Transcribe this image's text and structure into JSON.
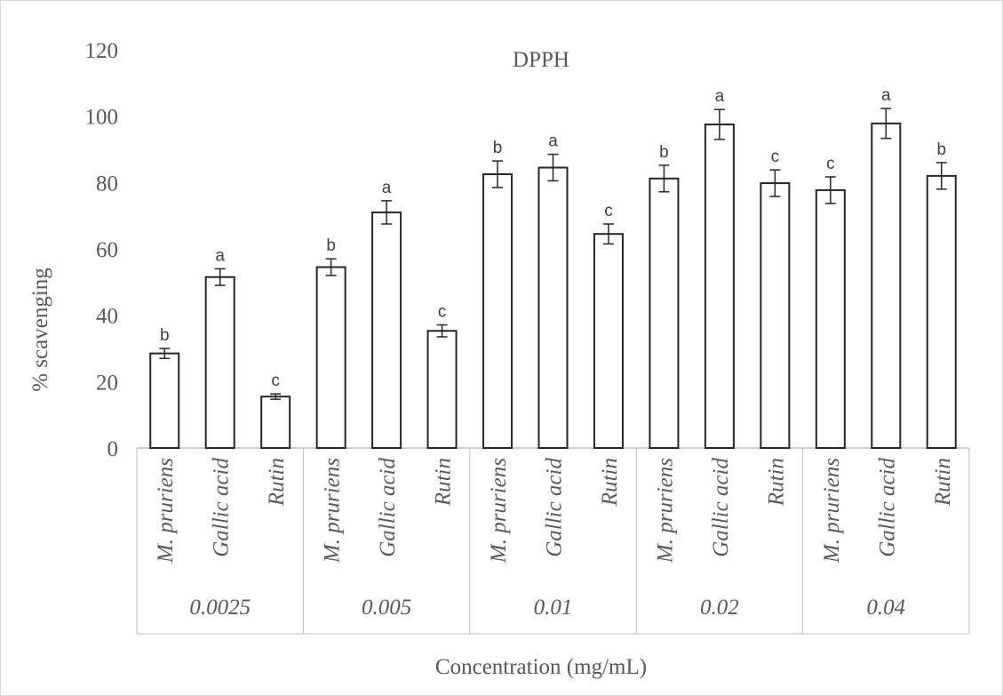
{
  "chart_data": {
    "type": "bar",
    "title": "DPPH",
    "xlabel": "Concentration (mg/mL)",
    "ylabel": "% scavenging",
    "ylim": [
      0,
      120
    ],
    "yticks": [
      0,
      20,
      40,
      60,
      80,
      100,
      120
    ],
    "grid": false,
    "legend": "none",
    "groups": [
      "0.0025",
      "0.005",
      "0.01",
      "0.02",
      "0.04"
    ],
    "categories": [
      "M. pruriens",
      "Gallic acid",
      "Rutin"
    ],
    "bars": [
      {
        "group": "0.0025",
        "category": "M. pruriens",
        "value": 28.5,
        "error": 1.5,
        "label": "b"
      },
      {
        "group": "0.0025",
        "category": "Gallic acid",
        "value": 51.5,
        "error": 2.5,
        "label": "a"
      },
      {
        "group": "0.0025",
        "category": "Rutin",
        "value": 15.5,
        "error": 0.8,
        "label": "c"
      },
      {
        "group": "0.005",
        "category": "M. pruriens",
        "value": 54.5,
        "error": 2.5,
        "label": "b"
      },
      {
        "group": "0.005",
        "category": "Gallic acid",
        "value": 71.0,
        "error": 3.5,
        "label": "a"
      },
      {
        "group": "0.005",
        "category": "Rutin",
        "value": 35.3,
        "error": 1.8,
        "label": "c"
      },
      {
        "group": "0.01",
        "category": "M. pruriens",
        "value": 82.5,
        "error": 4.0,
        "label": "b"
      },
      {
        "group": "0.01",
        "category": "Gallic acid",
        "value": 84.5,
        "error": 4.0,
        "label": "a"
      },
      {
        "group": "0.01",
        "category": "Rutin",
        "value": 64.5,
        "error": 3.0,
        "label": "c"
      },
      {
        "group": "0.02",
        "category": "M. pruriens",
        "value": 81.2,
        "error": 4.0,
        "label": "b"
      },
      {
        "group": "0.02",
        "category": "Gallic acid",
        "value": 97.5,
        "error": 4.5,
        "label": "a"
      },
      {
        "group": "0.02",
        "category": "Rutin",
        "value": 79.8,
        "error": 4.0,
        "label": "c"
      },
      {
        "group": "0.04",
        "category": "M. pruriens",
        "value": 77.7,
        "error": 4.0,
        "label": "c"
      },
      {
        "group": "0.04",
        "category": "Gallic acid",
        "value": 97.8,
        "error": 4.5,
        "label": "a"
      },
      {
        "group": "0.04",
        "category": "Rutin",
        "value": 82.0,
        "error": 4.0,
        "label": "b"
      }
    ]
  },
  "colors": {
    "bar_fill": "#ffffff",
    "bar_stroke": "#262626",
    "axis_line": "#bfbfbf",
    "text": "#595959",
    "letter_text": "#404040"
  }
}
